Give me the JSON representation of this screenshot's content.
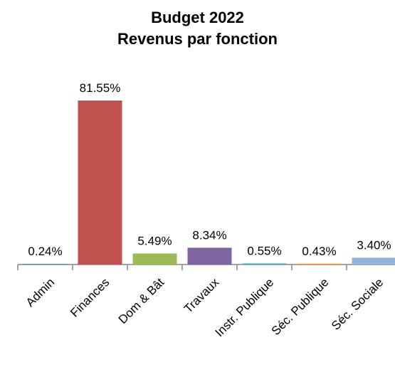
{
  "chart_data": {
    "type": "bar",
    "title": [
      "Budget 2022",
      "Revenus par fonction"
    ],
    "categories": [
      "Admin",
      "Finances",
      "Dom & Bât",
      "Travaux",
      "Instr. Publique",
      "Séc. Publique",
      "Séc. Sociale"
    ],
    "values": [
      0.24,
      81.55,
      5.49,
      8.34,
      0.55,
      0.43,
      3.4
    ],
    "data_labels": [
      "0.24%",
      "81.55%",
      "5.49%",
      "8.34%",
      "0.55%",
      "0.43%",
      "3.40%"
    ],
    "colors": [
      "#4f81bd",
      "#c0504d",
      "#9bbb59",
      "#8064a2",
      "#4bacc6",
      "#f79646",
      "#95b3d7"
    ],
    "ylim": [
      0,
      81.55
    ],
    "xlabel": "",
    "ylabel": "",
    "grid": false,
    "legend": "none"
  }
}
